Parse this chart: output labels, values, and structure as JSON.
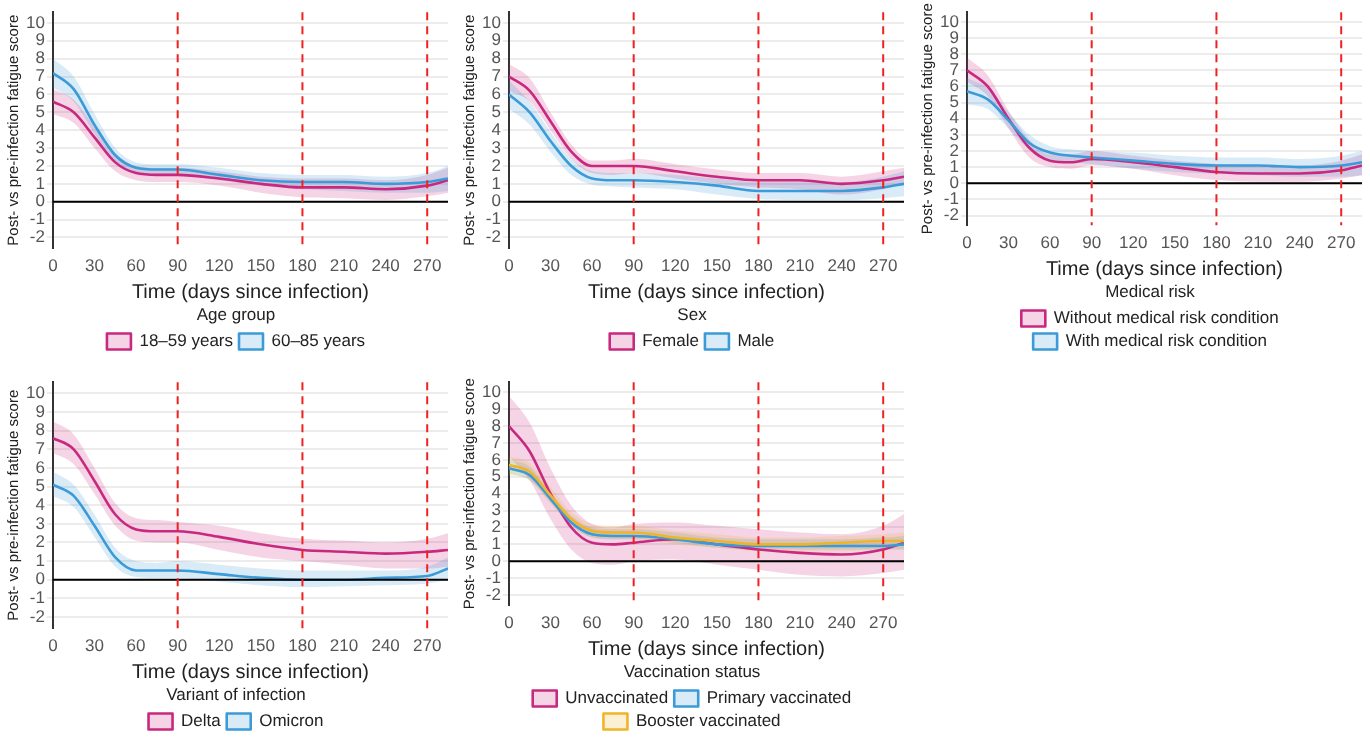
{
  "chart_data": [
    {
      "type": "line",
      "xlabel": "Time (days since infection)",
      "ylabel": "Post- vs pre-infection fatigue score",
      "legend_title": "Age group",
      "legend": "bottom",
      "grid": "y",
      "marker": "none",
      "xlim": [
        0,
        285
      ],
      "ylim": [
        -2.6,
        10.6
      ],
      "xticks": [
        0,
        30,
        60,
        90,
        120,
        150,
        180,
        210,
        240,
        270
      ],
      "yticks": [
        -2,
        -1,
        0,
        1,
        2,
        3,
        4,
        5,
        6,
        7,
        8,
        9,
        10
      ],
      "x": [
        0,
        15,
        30,
        45,
        60,
        75,
        90,
        120,
        150,
        180,
        210,
        240,
        270,
        285
      ],
      "ref_lines": [
        {
          "axis": "y",
          "value": 0,
          "color": "#000000"
        },
        {
          "axis": "x",
          "value": 90,
          "color": "#ee2222",
          "line_style": "dashed"
        },
        {
          "axis": "x",
          "value": 180,
          "color": "#ee2222",
          "line_style": "dashed"
        },
        {
          "axis": "x",
          "value": 270,
          "color": "#ee2222",
          "line_style": "dashed"
        }
      ],
      "series": [
        {
          "name": "18–59 years",
          "color": "#c8287f",
          "values": [
            5.6,
            5.0,
            3.6,
            2.2,
            1.6,
            1.5,
            1.5,
            1.3,
            1.0,
            0.8,
            0.8,
            0.7,
            0.9,
            1.2
          ],
          "lower": [
            4.9,
            4.4,
            3.0,
            1.7,
            1.2,
            1.1,
            1.1,
            0.9,
            0.5,
            0.25,
            0.2,
            0.1,
            0.3,
            0.5
          ],
          "upper": [
            6.3,
            5.7,
            4.2,
            2.7,
            2.0,
            1.9,
            1.9,
            1.7,
            1.4,
            1.3,
            1.3,
            1.2,
            1.5,
            1.9
          ]
        },
        {
          "name": "60–85 years",
          "color": "#3b9ad8",
          "values": [
            7.2,
            6.3,
            4.3,
            2.6,
            1.9,
            1.8,
            1.8,
            1.5,
            1.2,
            1.1,
            1.1,
            1.0,
            1.1,
            1.3
          ],
          "lower": [
            6.4,
            5.6,
            3.8,
            2.2,
            1.6,
            1.5,
            1.5,
            1.2,
            0.9,
            0.7,
            0.6,
            0.5,
            0.5,
            0.6
          ],
          "upper": [
            8.0,
            7.0,
            4.9,
            3.0,
            2.2,
            2.1,
            2.1,
            1.9,
            1.6,
            1.5,
            1.5,
            1.4,
            1.6,
            2.0
          ]
        }
      ]
    },
    {
      "type": "line",
      "xlabel": "Time (days since infection)",
      "ylabel": "Post- vs pre-infection fatigue score",
      "legend_title": "Sex",
      "legend": "bottom",
      "grid": "y",
      "marker": "none",
      "xlim": [
        0,
        285
      ],
      "ylim": [
        -2.6,
        10.6
      ],
      "xticks": [
        0,
        30,
        60,
        90,
        120,
        150,
        180,
        210,
        240,
        270
      ],
      "yticks": [
        -2,
        -1,
        0,
        1,
        2,
        3,
        4,
        5,
        6,
        7,
        8,
        9,
        10
      ],
      "x": [
        0,
        15,
        30,
        45,
        60,
        75,
        90,
        120,
        150,
        180,
        210,
        240,
        270,
        285
      ],
      "ref_lines": [
        {
          "axis": "y",
          "value": 0,
          "color": "#000000"
        },
        {
          "axis": "x",
          "value": 90,
          "color": "#ee2222",
          "line_style": "dashed"
        },
        {
          "axis": "x",
          "value": 180,
          "color": "#ee2222",
          "line_style": "dashed"
        },
        {
          "axis": "x",
          "value": 270,
          "color": "#ee2222",
          "line_style": "dashed"
        }
      ],
      "series": [
        {
          "name": "Female",
          "color": "#c8287f",
          "values": [
            7.0,
            6.2,
            4.5,
            2.8,
            2.0,
            2.0,
            2.0,
            1.7,
            1.4,
            1.2,
            1.2,
            1.0,
            1.2,
            1.4
          ],
          "lower": [
            6.2,
            5.6,
            4.0,
            2.4,
            1.6,
            1.5,
            1.6,
            1.3,
            1.0,
            0.8,
            0.7,
            0.4,
            0.7,
            1.0
          ],
          "upper": [
            7.7,
            6.9,
            5.0,
            3.2,
            2.3,
            2.3,
            2.4,
            2.1,
            1.8,
            1.6,
            1.6,
            1.4,
            1.7,
            1.9
          ]
        },
        {
          "name": "Male",
          "color": "#3b9ad8",
          "values": [
            6.0,
            5.0,
            3.4,
            2.0,
            1.3,
            1.2,
            1.2,
            1.1,
            0.9,
            0.6,
            0.6,
            0.6,
            0.8,
            1.0
          ],
          "lower": [
            5.2,
            4.3,
            2.8,
            1.5,
            0.95,
            0.85,
            0.8,
            0.7,
            0.4,
            0.15,
            0.1,
            0.1,
            0.2,
            0.3
          ],
          "upper": [
            6.8,
            5.6,
            3.9,
            2.4,
            1.7,
            1.6,
            1.6,
            1.5,
            1.3,
            1.1,
            1.1,
            1.1,
            1.4,
            1.7
          ]
        }
      ]
    },
    {
      "type": "line",
      "xlabel": "Time (days since infection)",
      "ylabel": "Post- vs pre-infection fatigue score",
      "legend_title": "Medical risk",
      "legend": "bottom",
      "grid": "y",
      "marker": "none",
      "xlim": [
        0,
        285
      ],
      "ylim": [
        -2.6,
        10.6
      ],
      "xticks": [
        0,
        30,
        60,
        90,
        120,
        150,
        180,
        210,
        240,
        270
      ],
      "yticks": [
        -2,
        -1,
        0,
        1,
        2,
        3,
        4,
        5,
        6,
        7,
        8,
        9,
        10
      ],
      "x": [
        0,
        15,
        30,
        45,
        60,
        75,
        90,
        120,
        150,
        180,
        210,
        240,
        270,
        285
      ],
      "ref_lines": [
        {
          "axis": "y",
          "value": 0,
          "color": "#000000"
        },
        {
          "axis": "x",
          "value": 90,
          "color": "#ee2222",
          "line_style": "dashed"
        },
        {
          "axis": "x",
          "value": 180,
          "color": "#ee2222",
          "line_style": "dashed"
        },
        {
          "axis": "x",
          "value": 270,
          "color": "#ee2222",
          "line_style": "dashed"
        }
      ],
      "series": [
        {
          "name": "Without medical risk condition",
          "color": "#c8287f",
          "values": [
            7.0,
            6.0,
            4.0,
            2.2,
            1.4,
            1.3,
            1.5,
            1.3,
            1.0,
            0.7,
            0.6,
            0.6,
            0.8,
            1.1
          ],
          "lower": [
            6.3,
            5.4,
            3.4,
            1.6,
            1.0,
            0.9,
            1.1,
            0.9,
            0.5,
            0.2,
            0.1,
            0.1,
            0.3,
            0.5
          ],
          "upper": [
            7.8,
            6.7,
            4.5,
            2.7,
            1.8,
            1.8,
            2.0,
            1.7,
            1.4,
            1.2,
            1.1,
            1.1,
            1.4,
            1.8
          ]
        },
        {
          "name": "With medical risk condition",
          "color": "#3b9ad8",
          "values": [
            5.7,
            5.2,
            3.9,
            2.5,
            1.9,
            1.7,
            1.6,
            1.4,
            1.2,
            1.1,
            1.1,
            1.0,
            1.1,
            1.3
          ],
          "lower": [
            4.9,
            4.6,
            3.4,
            2.1,
            1.5,
            1.3,
            1.2,
            0.9,
            0.7,
            0.6,
            0.5,
            0.4,
            0.4,
            0.5
          ],
          "upper": [
            6.5,
            5.9,
            4.4,
            3.0,
            2.3,
            2.1,
            2.0,
            1.9,
            1.7,
            1.6,
            1.6,
            1.5,
            1.7,
            2.0
          ]
        }
      ]
    },
    {
      "type": "line",
      "xlabel": "Time (days since infection)",
      "ylabel": "Post- vs pre-infection fatigue score",
      "legend_title": "Variant of infection",
      "legend": "bottom",
      "grid": "y",
      "marker": "none",
      "xlim": [
        0,
        285
      ],
      "ylim": [
        -2.6,
        10.6
      ],
      "xticks": [
        0,
        30,
        60,
        90,
        120,
        150,
        180,
        210,
        240,
        270
      ],
      "yticks": [
        -2,
        -1,
        0,
        1,
        2,
        3,
        4,
        5,
        6,
        7,
        8,
        9,
        10
      ],
      "x": [
        0,
        15,
        30,
        45,
        60,
        75,
        90,
        120,
        150,
        180,
        210,
        240,
        270,
        285
      ],
      "ref_lines": [
        {
          "axis": "y",
          "value": 0,
          "color": "#000000"
        },
        {
          "axis": "x",
          "value": 90,
          "color": "#ee2222",
          "line_style": "dashed"
        },
        {
          "axis": "x",
          "value": 180,
          "color": "#ee2222",
          "line_style": "dashed"
        },
        {
          "axis": "x",
          "value": 270,
          "color": "#ee2222",
          "line_style": "dashed"
        }
      ],
      "series": [
        {
          "name": "Delta",
          "color": "#c8287f",
          "values": [
            7.6,
            7.0,
            5.3,
            3.5,
            2.7,
            2.6,
            2.6,
            2.3,
            1.9,
            1.6,
            1.5,
            1.4,
            1.5,
            1.6
          ],
          "lower": [
            6.8,
            6.2,
            4.6,
            2.9,
            2.1,
            2.0,
            2.0,
            1.6,
            1.2,
            1.0,
            0.8,
            0.6,
            0.6,
            0.7
          ],
          "upper": [
            8.5,
            7.8,
            6.0,
            4.1,
            3.3,
            3.2,
            3.1,
            2.9,
            2.5,
            2.2,
            2.1,
            2.0,
            2.2,
            2.5
          ]
        },
        {
          "name": "Omicron",
          "color": "#3b9ad8",
          "values": [
            5.1,
            4.5,
            2.9,
            1.2,
            0.5,
            0.5,
            0.5,
            0.3,
            0.1,
            0.0,
            0.0,
            0.1,
            0.2,
            0.6
          ],
          "lower": [
            4.5,
            3.9,
            2.3,
            0.7,
            0.15,
            0.1,
            0.1,
            -0.1,
            -0.3,
            -0.4,
            -0.35,
            -0.3,
            -0.2,
            0.0
          ],
          "upper": [
            5.8,
            5.1,
            3.5,
            1.7,
            1.0,
            0.9,
            1.0,
            0.8,
            0.6,
            0.5,
            0.5,
            0.5,
            0.7,
            1.2
          ]
        }
      ]
    },
    {
      "type": "line",
      "xlabel": "Time (days since infection)",
      "ylabel": "Post- vs pre-infection fatigue score",
      "legend_title": "Vaccination status",
      "legend": "bottom",
      "grid": "y",
      "marker": "none",
      "xlim": [
        0,
        285
      ],
      "ylim": [
        -2.6,
        10.6
      ],
      "xticks": [
        0,
        30,
        60,
        90,
        120,
        150,
        180,
        210,
        240,
        270
      ],
      "yticks": [
        -2,
        -1,
        0,
        1,
        2,
        3,
        4,
        5,
        6,
        7,
        8,
        9,
        10
      ],
      "x": [
        0,
        15,
        30,
        45,
        60,
        75,
        90,
        120,
        150,
        180,
        210,
        240,
        270,
        285
      ],
      "ref_lines": [
        {
          "axis": "y",
          "value": 0,
          "color": "#000000"
        },
        {
          "axis": "x",
          "value": 90,
          "color": "#ee2222",
          "line_style": "dashed"
        },
        {
          "axis": "x",
          "value": 180,
          "color": "#ee2222",
          "line_style": "dashed"
        },
        {
          "axis": "x",
          "value": 270,
          "color": "#ee2222",
          "line_style": "dashed"
        }
      ],
      "series": [
        {
          "name": "Unvaccinated",
          "color": "#c8287f",
          "values": [
            8.0,
            6.5,
            4.0,
            2.0,
            1.1,
            1.0,
            1.1,
            1.3,
            1.0,
            0.7,
            0.5,
            0.4,
            0.7,
            1.1
          ],
          "lower": [
            6.2,
            4.8,
            2.5,
            0.7,
            -0.1,
            -0.2,
            0.0,
            0.1,
            -0.2,
            -0.5,
            -0.8,
            -0.9,
            -0.7,
            -0.5
          ],
          "upper": [
            9.8,
            8.2,
            5.5,
            3.3,
            2.2,
            2.0,
            2.2,
            2.3,
            2.1,
            1.9,
            1.7,
            1.6,
            2.1,
            2.8
          ]
        },
        {
          "name": "Primary vaccinated",
          "color": "#3b9ad8",
          "values": [
            5.5,
            5.1,
            3.7,
            2.3,
            1.6,
            1.5,
            1.5,
            1.3,
            1.0,
            0.9,
            0.9,
            0.9,
            0.9,
            1.0
          ],
          "lower": [
            5.2,
            4.8,
            3.5,
            2.1,
            1.4,
            1.3,
            1.3,
            1.1,
            0.8,
            0.7,
            0.7,
            0.7,
            0.7,
            0.7
          ],
          "upper": [
            6.0,
            5.6,
            4.1,
            2.7,
            2.0,
            1.9,
            1.9,
            1.7,
            1.4,
            1.3,
            1.3,
            1.3,
            1.4,
            1.5
          ]
        },
        {
          "name": "Booster vaccinated",
          "color": "#f0b429",
          "values": [
            5.7,
            5.3,
            3.9,
            2.5,
            1.8,
            1.7,
            1.7,
            1.4,
            1.2,
            1.0,
            1.0,
            1.1,
            1.2,
            1.2
          ],
          "lower": [
            5.1,
            4.8,
            3.4,
            2.1,
            1.4,
            1.3,
            1.3,
            1.0,
            0.8,
            0.6,
            0.6,
            0.6,
            0.7,
            0.7
          ],
          "upper": [
            6.2,
            5.8,
            4.4,
            2.9,
            2.2,
            2.1,
            2.1,
            1.8,
            1.6,
            1.4,
            1.4,
            1.5,
            1.6,
            1.7
          ]
        }
      ]
    }
  ]
}
